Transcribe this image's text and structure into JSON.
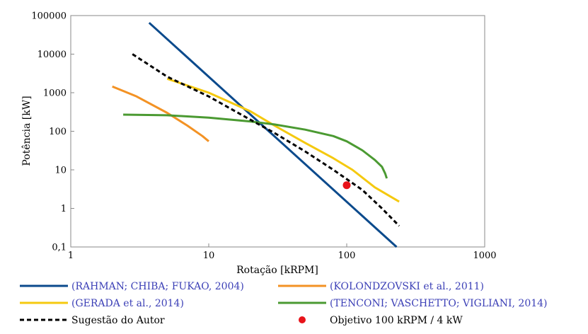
{
  "chart_data": {
    "type": "line",
    "xscale": "log",
    "yscale": "log",
    "xlabel": "Rotação [kRPM]",
    "ylabel": "Potência [kW]",
    "xlim": [
      1,
      1000
    ],
    "ylim": [
      0.1,
      100000
    ],
    "xticks": [
      {
        "v": 1,
        "label": "1"
      },
      {
        "v": 10,
        "label": "10"
      },
      {
        "v": 100,
        "label": "100"
      },
      {
        "v": 1000,
        "label": "1000"
      }
    ],
    "yticks": [
      {
        "v": 0.1,
        "label": "0,1"
      },
      {
        "v": 1,
        "label": "1"
      },
      {
        "v": 10,
        "label": "10"
      },
      {
        "v": 100,
        "label": "100"
      },
      {
        "v": 1000,
        "label": "1000"
      },
      {
        "v": 10000,
        "label": "10000"
      },
      {
        "v": 100000,
        "label": "100000"
      }
    ],
    "grid": false,
    "legend_position": "bottom",
    "series": [
      {
        "name": "(RAHMAN; CHIBA; FUKAO, 2004)",
        "color": "#0b4a8c",
        "style": "solid",
        "points": [
          [
            3.7,
            65000
          ],
          [
            230,
            0.1
          ]
        ]
      },
      {
        "name": "(KOLONDZOVSKI et al., 2011)",
        "color": "#f39224",
        "style": "solid",
        "points": [
          [
            2,
            1450
          ],
          [
            3,
            800
          ],
          [
            5,
            300
          ],
          [
            7,
            140
          ],
          [
            9,
            75
          ],
          [
            10,
            55
          ]
        ]
      },
      {
        "name": "(GERADA et al., 2014)",
        "color": "#f5c90f",
        "style": "solid",
        "points": [
          [
            5,
            2300
          ],
          [
            10,
            1000
          ],
          [
            20,
            330
          ],
          [
            30,
            140
          ],
          [
            50,
            50
          ],
          [
            80,
            20
          ],
          [
            110,
            10
          ],
          [
            160,
            3.5
          ],
          [
            240,
            1.5
          ]
        ]
      },
      {
        "name": "(TENCONI; VASCHETTO; VIGLIANI, 2014)",
        "color": "#4b9a32",
        "style": "solid",
        "points": [
          [
            2.4,
            270
          ],
          [
            5,
            260
          ],
          [
            10,
            225
          ],
          [
            20,
            180
          ],
          [
            30,
            150
          ],
          [
            50,
            110
          ],
          [
            80,
            75
          ],
          [
            100,
            55
          ],
          [
            130,
            32
          ],
          [
            160,
            18
          ],
          [
            180,
            12
          ],
          [
            190,
            8
          ],
          [
            195,
            6
          ]
        ]
      },
      {
        "name": "Sugestão do Autor",
        "color": "#000000",
        "style": "dashed",
        "points": [
          [
            2.8,
            10000
          ],
          [
            5,
            2600
          ],
          [
            10,
            800
          ],
          [
            20,
            200
          ],
          [
            30,
            90
          ],
          [
            50,
            30
          ],
          [
            80,
            10
          ],
          [
            130,
            3
          ],
          [
            180,
            1
          ],
          [
            240,
            0.35
          ]
        ]
      }
    ],
    "markers": [
      {
        "name": "Objetivo 100 kRPM / 4 kW",
        "x": 100,
        "y": 4,
        "color": "#e8131a"
      }
    ],
    "legend": [
      {
        "kind": "line",
        "color": "#0b4a8c",
        "style": "solid",
        "text": "(RAHMAN; CHIBA; FUKAO, 2004)",
        "cite": true
      },
      {
        "kind": "line",
        "color": "#f39224",
        "style": "solid",
        "text": "(KOLONDZOVSKI et al., 2011)",
        "cite": true
      },
      {
        "kind": "line",
        "color": "#f5c90f",
        "style": "solid",
        "text": "(GERADA et al., 2014)",
        "cite": true
      },
      {
        "kind": "line",
        "color": "#4b9a32",
        "style": "solid",
        "text": "(TENCONI; VASCHETTO; VIGLIANI, 2014)",
        "cite": true
      },
      {
        "kind": "line",
        "color": "#000000",
        "style": "dashed",
        "text": "Sugestão do Autor",
        "cite": false
      },
      {
        "kind": "dot",
        "color": "#e8131a",
        "text": "Objetivo 100 kRPM / 4 kW",
        "cite": false
      }
    ]
  }
}
